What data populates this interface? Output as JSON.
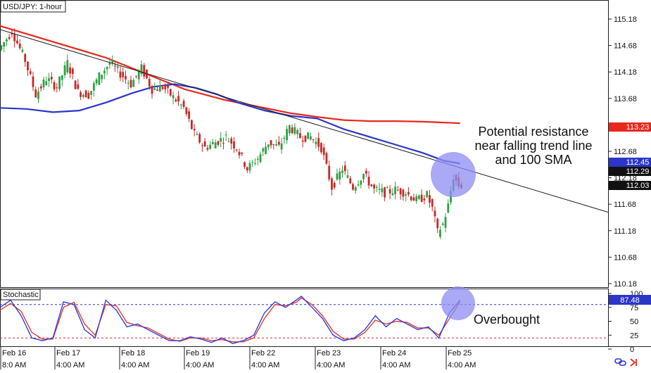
{
  "header": {
    "symbol_title": "USD/JPY: 1-hour",
    "indicator_title": "Stochastic"
  },
  "annotations": {
    "resistance_lines": [
      "Potential resistance",
      "near falling trend line",
      "and 100 SMA"
    ],
    "overbought": "Overbought"
  },
  "colors": {
    "sma_200": "#e8271d",
    "sma_100": "#2b35c9",
    "trendline": "#1a1a1a",
    "bull_candle": "#2ea043",
    "bear_candle": "#c62828",
    "stoch_k": "#3140d8",
    "stoch_d": "#e53935",
    "highlight": "#8c8cf2",
    "price_tag_red": "#e8271d",
    "price_tag_blue": "#2b35c9",
    "price_tag_dark": "#111111"
  },
  "chart_data": [
    {
      "type": "candlestick",
      "title": "USD/JPY: 1-hour",
      "ylim": [
        110.18,
        115.18
      ],
      "y_ticks": [
        "115.18",
        "114.68",
        "114.18",
        "113.68",
        "112.68",
        "112.18",
        "111.68",
        "111.18",
        "110.68",
        "110.18"
      ],
      "x_labels": [
        "Feb 16",
        "Feb 17",
        "Feb 18",
        "Feb 19",
        "Feb 22",
        "Feb 23",
        "Feb 24",
        "Feb 25"
      ],
      "x_sub_labels": [
        "8:0  AM",
        "4:00 AM",
        "4:00 AM",
        "4:00 AM",
        "4:00 AM",
        "4:00 AM",
        "4:00 AM",
        "4:00 AM"
      ],
      "price_tags": [
        {
          "label": "113.23",
          "value": 113.23,
          "style": "red"
        },
        {
          "label": "112.45",
          "value": 112.45,
          "style": "blue"
        },
        {
          "label": "112.29",
          "value": 112.29,
          "style": "dark"
        },
        {
          "label": "112.03",
          "value": 112.03,
          "style": "dark"
        }
      ],
      "price_path": [
        [
          0,
          114.6
        ],
        [
          5,
          114.95
        ],
        [
          10,
          114.4
        ],
        [
          14,
          113.75
        ],
        [
          18,
          114.05
        ],
        [
          22,
          113.9
        ],
        [
          26,
          114.35
        ],
        [
          30,
          113.8
        ],
        [
          34,
          113.75
        ],
        [
          38,
          114.1
        ],
        [
          42,
          114.35
        ],
        [
          46,
          114.15
        ],
        [
          50,
          113.95
        ],
        [
          54,
          114.25
        ],
        [
          58,
          113.85
        ],
        [
          62,
          113.9
        ],
        [
          66,
          113.7
        ],
        [
          70,
          113.5
        ],
        [
          74,
          113.0
        ],
        [
          78,
          112.75
        ],
        [
          82,
          112.85
        ],
        [
          86,
          112.95
        ],
        [
          90,
          112.75
        ],
        [
          94,
          112.35
        ],
        [
          98,
          112.55
        ],
        [
          102,
          112.85
        ],
        [
          106,
          112.75
        ],
        [
          110,
          113.15
        ],
        [
          114,
          112.95
        ],
        [
          118,
          112.95
        ],
        [
          122,
          112.75
        ],
        [
          126,
          112.0
        ],
        [
          130,
          112.35
        ],
        [
          134,
          112.0
        ],
        [
          138,
          112.25
        ],
        [
          142,
          111.95
        ],
        [
          146,
          111.9
        ],
        [
          150,
          111.95
        ],
        [
          154,
          111.9
        ],
        [
          158,
          111.75
        ],
        [
          162,
          111.85
        ],
        [
          164,
          111.6
        ],
        [
          166,
          111.15
        ],
        [
          168,
          111.3
        ],
        [
          170,
          111.65
        ],
        [
          172,
          112.2
        ],
        [
          174,
          112.03
        ]
      ],
      "sma_200": [
        [
          0,
          115.05
        ],
        [
          20,
          114.75
        ],
        [
          40,
          114.45
        ],
        [
          55,
          114.15
        ],
        [
          70,
          113.85
        ],
        [
          85,
          113.65
        ],
        [
          100,
          113.5
        ],
        [
          110,
          113.4
        ],
        [
          120,
          113.33
        ],
        [
          130,
          113.27
        ],
        [
          140,
          113.25
        ],
        [
          150,
          113.25
        ],
        [
          160,
          113.24
        ],
        [
          174,
          113.21
        ]
      ],
      "sma_100": [
        [
          0,
          113.5
        ],
        [
          10,
          113.48
        ],
        [
          20,
          113.42
        ],
        [
          30,
          113.45
        ],
        [
          40,
          113.6
        ],
        [
          50,
          113.78
        ],
        [
          58,
          113.9
        ],
        [
          66,
          113.95
        ],
        [
          74,
          113.88
        ],
        [
          82,
          113.76
        ],
        [
          90,
          113.6
        ],
        [
          100,
          113.45
        ],
        [
          110,
          113.35
        ],
        [
          120,
          113.3
        ],
        [
          130,
          113.1
        ],
        [
          140,
          112.95
        ],
        [
          150,
          112.8
        ],
        [
          160,
          112.65
        ],
        [
          168,
          112.5
        ],
        [
          174,
          112.45
        ]
      ],
      "trendline": [
        [
          0,
          114.98
        ],
        [
          230,
          111.53
        ]
      ],
      "x_range": [
        0,
        230
      ]
    },
    {
      "type": "line",
      "title": "Stochastic",
      "ylim": [
        0,
        100
      ],
      "y_ticks": [
        "100",
        "75",
        "50",
        "25",
        "0"
      ],
      "value_tag": "87.48",
      "levels": [
        80,
        20
      ],
      "stoch_k": [
        [
          0,
          75
        ],
        [
          4,
          88
        ],
        [
          8,
          60
        ],
        [
          12,
          20
        ],
        [
          16,
          15
        ],
        [
          20,
          20
        ],
        [
          24,
          85
        ],
        [
          28,
          80
        ],
        [
          32,
          35
        ],
        [
          36,
          20
        ],
        [
          40,
          88
        ],
        [
          44,
          70
        ],
        [
          48,
          40
        ],
        [
          52,
          45
        ],
        [
          56,
          35
        ],
        [
          60,
          25
        ],
        [
          64,
          15
        ],
        [
          68,
          15
        ],
        [
          72,
          22
        ],
        [
          76,
          18
        ],
        [
          80,
          12
        ],
        [
          84,
          20
        ],
        [
          88,
          10
        ],
        [
          92,
          15
        ],
        [
          96,
          25
        ],
        [
          100,
          65
        ],
        [
          104,
          85
        ],
        [
          108,
          75
        ],
        [
          112,
          88
        ],
        [
          114,
          95
        ],
        [
          118,
          75
        ],
        [
          122,
          55
        ],
        [
          126,
          25
        ],
        [
          130,
          15
        ],
        [
          134,
          20
        ],
        [
          138,
          35
        ],
        [
          142,
          60
        ],
        [
          146,
          40
        ],
        [
          150,
          55
        ],
        [
          154,
          45
        ],
        [
          158,
          35
        ],
        [
          162,
          40
        ],
        [
          166,
          20
        ],
        [
          170,
          65
        ],
        [
          174,
          88
        ]
      ],
      "stoch_d": [
        [
          0,
          70
        ],
        [
          4,
          82
        ],
        [
          8,
          68
        ],
        [
          12,
          30
        ],
        [
          16,
          18
        ],
        [
          20,
          18
        ],
        [
          24,
          75
        ],
        [
          28,
          84
        ],
        [
          32,
          45
        ],
        [
          36,
          25
        ],
        [
          40,
          80
        ],
        [
          44,
          78
        ],
        [
          48,
          48
        ],
        [
          52,
          42
        ],
        [
          56,
          38
        ],
        [
          60,
          28
        ],
        [
          64,
          18
        ],
        [
          68,
          14
        ],
        [
          72,
          20
        ],
        [
          76,
          20
        ],
        [
          80,
          15
        ],
        [
          84,
          17
        ],
        [
          88,
          13
        ],
        [
          92,
          13
        ],
        [
          96,
          20
        ],
        [
          100,
          55
        ],
        [
          104,
          80
        ],
        [
          108,
          78
        ],
        [
          112,
          84
        ],
        [
          114,
          92
        ],
        [
          118,
          80
        ],
        [
          122,
          60
        ],
        [
          126,
          32
        ],
        [
          130,
          18
        ],
        [
          134,
          18
        ],
        [
          138,
          30
        ],
        [
          142,
          52
        ],
        [
          146,
          45
        ],
        [
          150,
          50
        ],
        [
          154,
          48
        ],
        [
          158,
          38
        ],
        [
          162,
          38
        ],
        [
          166,
          25
        ],
        [
          170,
          55
        ],
        [
          174,
          85
        ]
      ],
      "x_range": [
        0,
        230
      ]
    }
  ]
}
